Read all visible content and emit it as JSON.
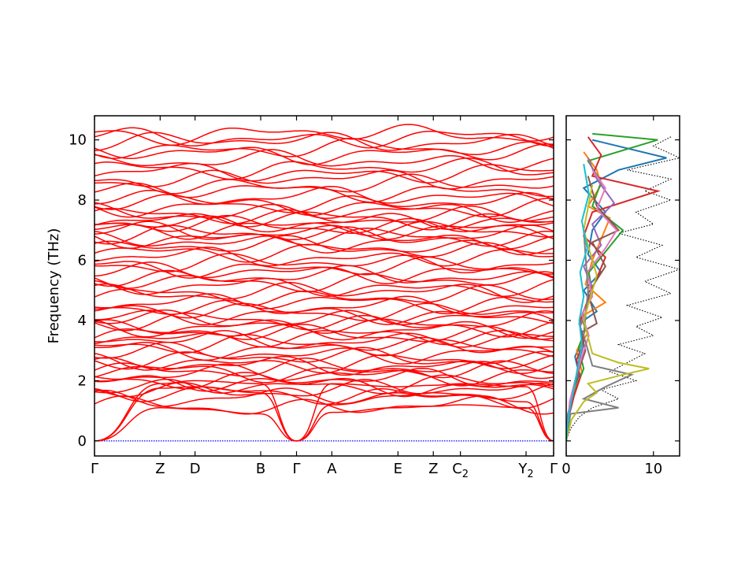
{
  "chart_data": [
    {
      "type": "line",
      "title": "",
      "ylabel": "Frequency (THz)",
      "xlabel": "",
      "ylim": [
        -0.5,
        10.8
      ],
      "yticks": [
        0,
        2,
        4,
        6,
        8,
        10
      ],
      "kpoints": [
        {
          "label": "Γ",
          "sub": "",
          "x": 0.0
        },
        {
          "label": "Z",
          "sub": "",
          "x": 0.143
        },
        {
          "label": "D",
          "sub": "",
          "x": 0.219
        },
        {
          "label": "B",
          "sub": "",
          "x": 0.362
        },
        {
          "label": "Γ",
          "sub": "",
          "x": 0.44
        },
        {
          "label": "A",
          "sub": "",
          "x": 0.517
        },
        {
          "label": "E",
          "sub": "",
          "x": 0.661
        },
        {
          "label": "Z",
          "sub": "",
          "x": 0.738
        },
        {
          "label": "C",
          "sub": "2",
          "x": 0.797
        },
        {
          "label": "Y",
          "sub": "2",
          "x": 0.94
        },
        {
          "label": "Γ",
          "sub": "",
          "x": 1.0
        }
      ],
      "band_color": "#ff0000",
      "zero_line_color": "#0000ff",
      "acoustic_branches": [
        {
          "name": "",
          "x": [
            0,
            0.143,
            0.219,
            0.362,
            0.44,
            0.517,
            0.661,
            0.738,
            0.797,
            0.94,
            1.0
          ],
          "y": [
            0,
            1.1,
            1.05,
            0.9,
            0,
            0.95,
            1.1,
            1.15,
            1.2,
            1.1,
            0
          ]
        },
        {
          "name": "",
          "x": [
            0,
            0.143,
            0.219,
            0.362,
            0.44,
            0.517,
            0.661,
            0.738,
            0.797,
            0.94,
            1.0
          ],
          "y": [
            0,
            1.75,
            1.8,
            1.6,
            0,
            1.2,
            1.5,
            1.6,
            1.55,
            1.3,
            0
          ]
        },
        {
          "name": "",
          "x": [
            0,
            0.143,
            0.219,
            0.362,
            0.44,
            0.517,
            0.661,
            0.738,
            0.797,
            0.94,
            1.0
          ],
          "y": [
            0,
            1.9,
            2.0,
            1.9,
            0,
            1.9,
            1.8,
            1.85,
            1.9,
            1.8,
            0
          ]
        }
      ],
      "optical_band_levels": [
        1.15,
        1.45,
        1.55,
        1.7,
        1.8,
        1.9,
        2.05,
        2.2,
        2.3,
        2.4,
        2.5,
        2.6,
        2.75,
        2.9,
        3.05,
        3.2,
        3.35,
        3.45,
        3.55,
        3.65,
        3.8,
        3.95,
        4.05,
        4.15,
        4.3,
        4.45,
        4.6,
        4.8,
        4.95,
        5.1,
        5.3,
        5.45,
        5.6,
        5.75,
        5.9,
        6.1,
        6.3,
        6.45,
        6.6,
        6.75,
        6.85,
        6.95,
        7.05,
        7.15,
        7.25,
        7.35,
        7.45,
        7.6,
        7.75,
        7.9,
        8.1,
        8.3,
        8.5,
        8.7,
        8.9,
        9.05,
        9.3,
        9.55,
        9.7,
        9.95,
        10.05,
        10.2
      ]
    },
    {
      "type": "line",
      "title": "",
      "xlabel": "",
      "ylabel": "",
      "xlim": [
        0,
        13
      ],
      "ylim": [
        -0.5,
        10.8
      ],
      "xticks": [
        0,
        10
      ],
      "series": [
        {
          "name": "",
          "color": "#000000",
          "style": "dotted",
          "x": [
            0,
            0.5,
            1.5,
            3,
            6,
            4,
            8,
            5,
            7,
            9,
            6,
            10,
            8,
            11,
            7,
            12,
            9,
            13,
            8,
            11,
            6,
            10,
            8,
            12,
            9,
            12,
            7,
            13,
            10,
            12
          ],
          "y": [
            0,
            0.4,
            0.8,
            1.1,
            1.4,
            1.7,
            2.0,
            2.3,
            2.6,
            2.9,
            3.2,
            3.5,
            3.8,
            4.1,
            4.5,
            4.9,
            5.3,
            5.7,
            6.1,
            6.5,
            6.9,
            7.2,
            7.6,
            8.0,
            8.3,
            8.7,
            9.0,
            9.4,
            9.8,
            10.1
          ]
        },
        {
          "name": "",
          "color": "#1f77b4",
          "style": "solid",
          "x": [
            0,
            0.2,
            0.8,
            1.5,
            1.0,
            2.0,
            1.5,
            3.5,
            2.0,
            4.0,
            2.5,
            3.0,
            4.5,
            2.0,
            6.0,
            11.5,
            3.0
          ],
          "y": [
            0,
            0.9,
            1.6,
            2.2,
            2.8,
            3.4,
            3.9,
            4.3,
            5.0,
            5.6,
            6.2,
            7.0,
            7.6,
            8.4,
            9.0,
            9.4,
            10.0
          ]
        },
        {
          "name": "",
          "color": "#ff7f0e",
          "style": "solid",
          "x": [
            0,
            0.3,
            1.0,
            1.8,
            1.2,
            2.5,
            1.6,
            4.5,
            2.2,
            3.0,
            5.0,
            2.5,
            4.0,
            3.5,
            2.0
          ],
          "y": [
            0,
            1.0,
            1.7,
            2.3,
            3.0,
            3.6,
            4.1,
            4.6,
            5.2,
            6.0,
            7.4,
            7.8,
            8.5,
            9.0,
            9.6
          ]
        },
        {
          "name": "",
          "color": "#2ca02c",
          "style": "solid",
          "x": [
            0,
            0.4,
            1.2,
            2.0,
            1.4,
            2.2,
            1.8,
            3.0,
            2.6,
            6.5,
            3.0,
            4.0,
            2.5,
            10.5,
            3.0
          ],
          "y": [
            0,
            1.1,
            1.8,
            2.4,
            3.1,
            3.7,
            4.2,
            4.9,
            5.6,
            7.0,
            7.8,
            8.6,
            9.3,
            10.0,
            10.2
          ]
        },
        {
          "name": "",
          "color": "#d62728",
          "style": "solid",
          "x": [
            0,
            0.3,
            0.9,
            1.6,
            1.2,
            2.0,
            1.5,
            2.5,
            4.5,
            2.0,
            3.0,
            10.5,
            3.0,
            4.0,
            2.5
          ],
          "y": [
            0,
            0.8,
            1.5,
            2.1,
            2.7,
            3.3,
            3.9,
            4.7,
            6.1,
            6.8,
            7.6,
            8.3,
            8.8,
            9.5,
            10.1
          ]
        },
        {
          "name": "",
          "color": "#9467bd",
          "style": "solid",
          "x": [
            0,
            0.5,
            1.0,
            1.4,
            2.0,
            1.6,
            2.4,
            3.0,
            2.0,
            4.0,
            3.0,
            5.5,
            3.5,
            2.5
          ],
          "y": [
            0,
            1.2,
            1.9,
            2.6,
            3.2,
            3.8,
            4.4,
            5.1,
            5.8,
            6.5,
            7.2,
            7.9,
            8.7,
            9.4
          ]
        },
        {
          "name": "",
          "color": "#8c564b",
          "style": "solid",
          "x": [
            0,
            0.3,
            0.8,
            1.5,
            2.2,
            1.7,
            3.5,
            2.5,
            4.5,
            3.0,
            6.0,
            3.5,
            2.5
          ],
          "y": [
            0,
            1.0,
            1.7,
            2.4,
            3.0,
            3.6,
            3.9,
            4.9,
            5.8,
            6.6,
            7.0,
            7.8,
            8.8
          ]
        },
        {
          "name": "",
          "color": "#e377c2",
          "style": "solid",
          "x": [
            0,
            0.4,
            1.0,
            1.8,
            2.6,
            1.8,
            3.0,
            2.4,
            4.5,
            5.8,
            3.5,
            4.5,
            3.0
          ],
          "y": [
            0,
            1.3,
            2.0,
            2.8,
            3.5,
            4.2,
            4.8,
            5.6,
            6.4,
            7.0,
            7.7,
            8.4,
            9.0
          ]
        },
        {
          "name": "",
          "color": "#7f7f7f",
          "style": "solid",
          "x": [
            0,
            0.5,
            6.0,
            2.0,
            4.5,
            7.5,
            3.0,
            2.0,
            2.5,
            2.0
          ],
          "y": [
            0,
            0.9,
            1.1,
            1.4,
            1.8,
            2.2,
            2.5,
            3.5,
            5.0,
            7.0
          ]
        },
        {
          "name": "",
          "color": "#bcbd22",
          "style": "solid",
          "x": [
            0,
            0.6,
            2.0,
            3.5,
            2.5,
            6.5,
            9.5,
            6.0,
            3.0,
            2.0,
            3.5,
            2.0,
            3.0
          ],
          "y": [
            0,
            0.7,
            1.3,
            1.6,
            1.9,
            2.2,
            2.4,
            2.6,
            2.9,
            4.0,
            5.5,
            7.0,
            8.5
          ]
        },
        {
          "name": "",
          "color": "#17becf",
          "style": "solid",
          "x": [
            0,
            0.3,
            0.8,
            1.3,
            1.8,
            1.5,
            2.0,
            1.6,
            2.4,
            1.8,
            2.6,
            2.0
          ],
          "y": [
            0,
            0.9,
            1.6,
            2.4,
            3.2,
            4.0,
            4.8,
            5.6,
            6.4,
            7.3,
            8.2,
            9.2
          ]
        }
      ]
    }
  ]
}
